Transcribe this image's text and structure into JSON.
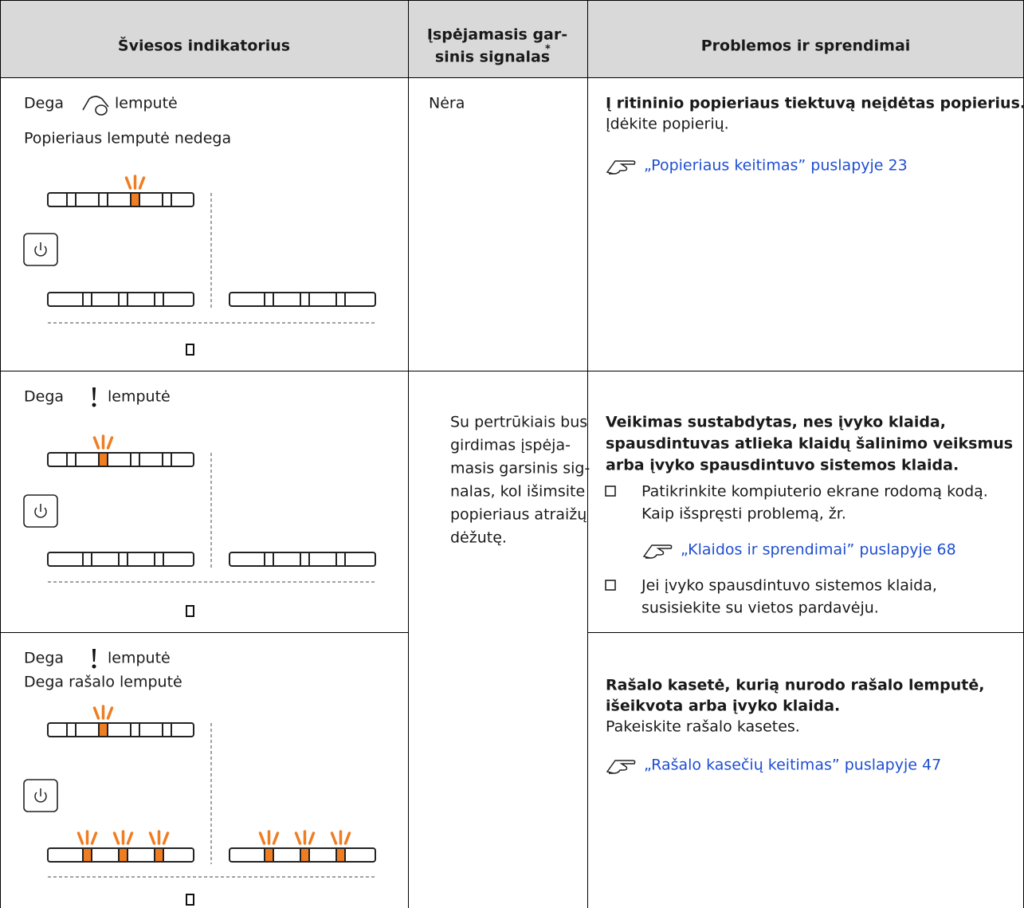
{
  "table": {
    "headers": {
      "indicator": "Šviesos indikatorius",
      "signal": [
        "Įspėjamasis gar-",
        "sinis signalas"
      ],
      "signal_note": "*",
      "solution": "Problemos ir sprendimai"
    },
    "rows": [
      {
        "indicator": [
          "Dega",
          "lemputė",
          "Popieriaus lemputė nedega"
        ],
        "signal": [
          "Nėra"
        ],
        "solution": {
          "title": [
            "Į ritininio popieriaus tiektuvą neįdėtas popierius."
          ],
          "text": "Įdėkite popierių.",
          "link": "„Popieriaus keitimas” puslapyje 23"
        }
      },
      {
        "indicator": [
          "Dega",
          "lemputė"
        ],
        "signal": [
          "Su pertrūkiais bus",
          "girdimas įspėja-",
          "masis garsinis sig-",
          "nalas, kol išimsite",
          "popieriaus atraižų",
          "dėžutę."
        ],
        "solution": {
          "title": [
            "Veikimas sustabdytas, nes įvyko klaida,",
            "spausdintuvas atlieka klaidų šalinimo veiksmus",
            "arba įvyko spausdintuvo sistemos klaida."
          ],
          "bullets": [
            {
              "text": [
                "Patikrinkite kompiuterio ekrane rodomą kodą.",
                "Kaip išspręsti problemą, žr."
              ],
              "link": "„Klaidos ir sprendimai” puslapyje 68"
            },
            {
              "text": [
                "Jei įvyko spausdintuvo sistemos klaida,",
                "susisiekite su vietos pardavėju."
              ]
            }
          ]
        }
      },
      {
        "indicator": [
          "Dega",
          "lemputė",
          "Dega rašalo lemputė"
        ],
        "solution": {
          "title": [
            "Rašalo kasetė, kurią nurodo rašalo lemputė,",
            "išeikvota arba įvyko klaida."
          ],
          "text": "Pakeiskite rašalo kasetes.",
          "link": "„Rašalo kasečių keitimas” puslapyje 47"
        }
      }
    ]
  }
}
